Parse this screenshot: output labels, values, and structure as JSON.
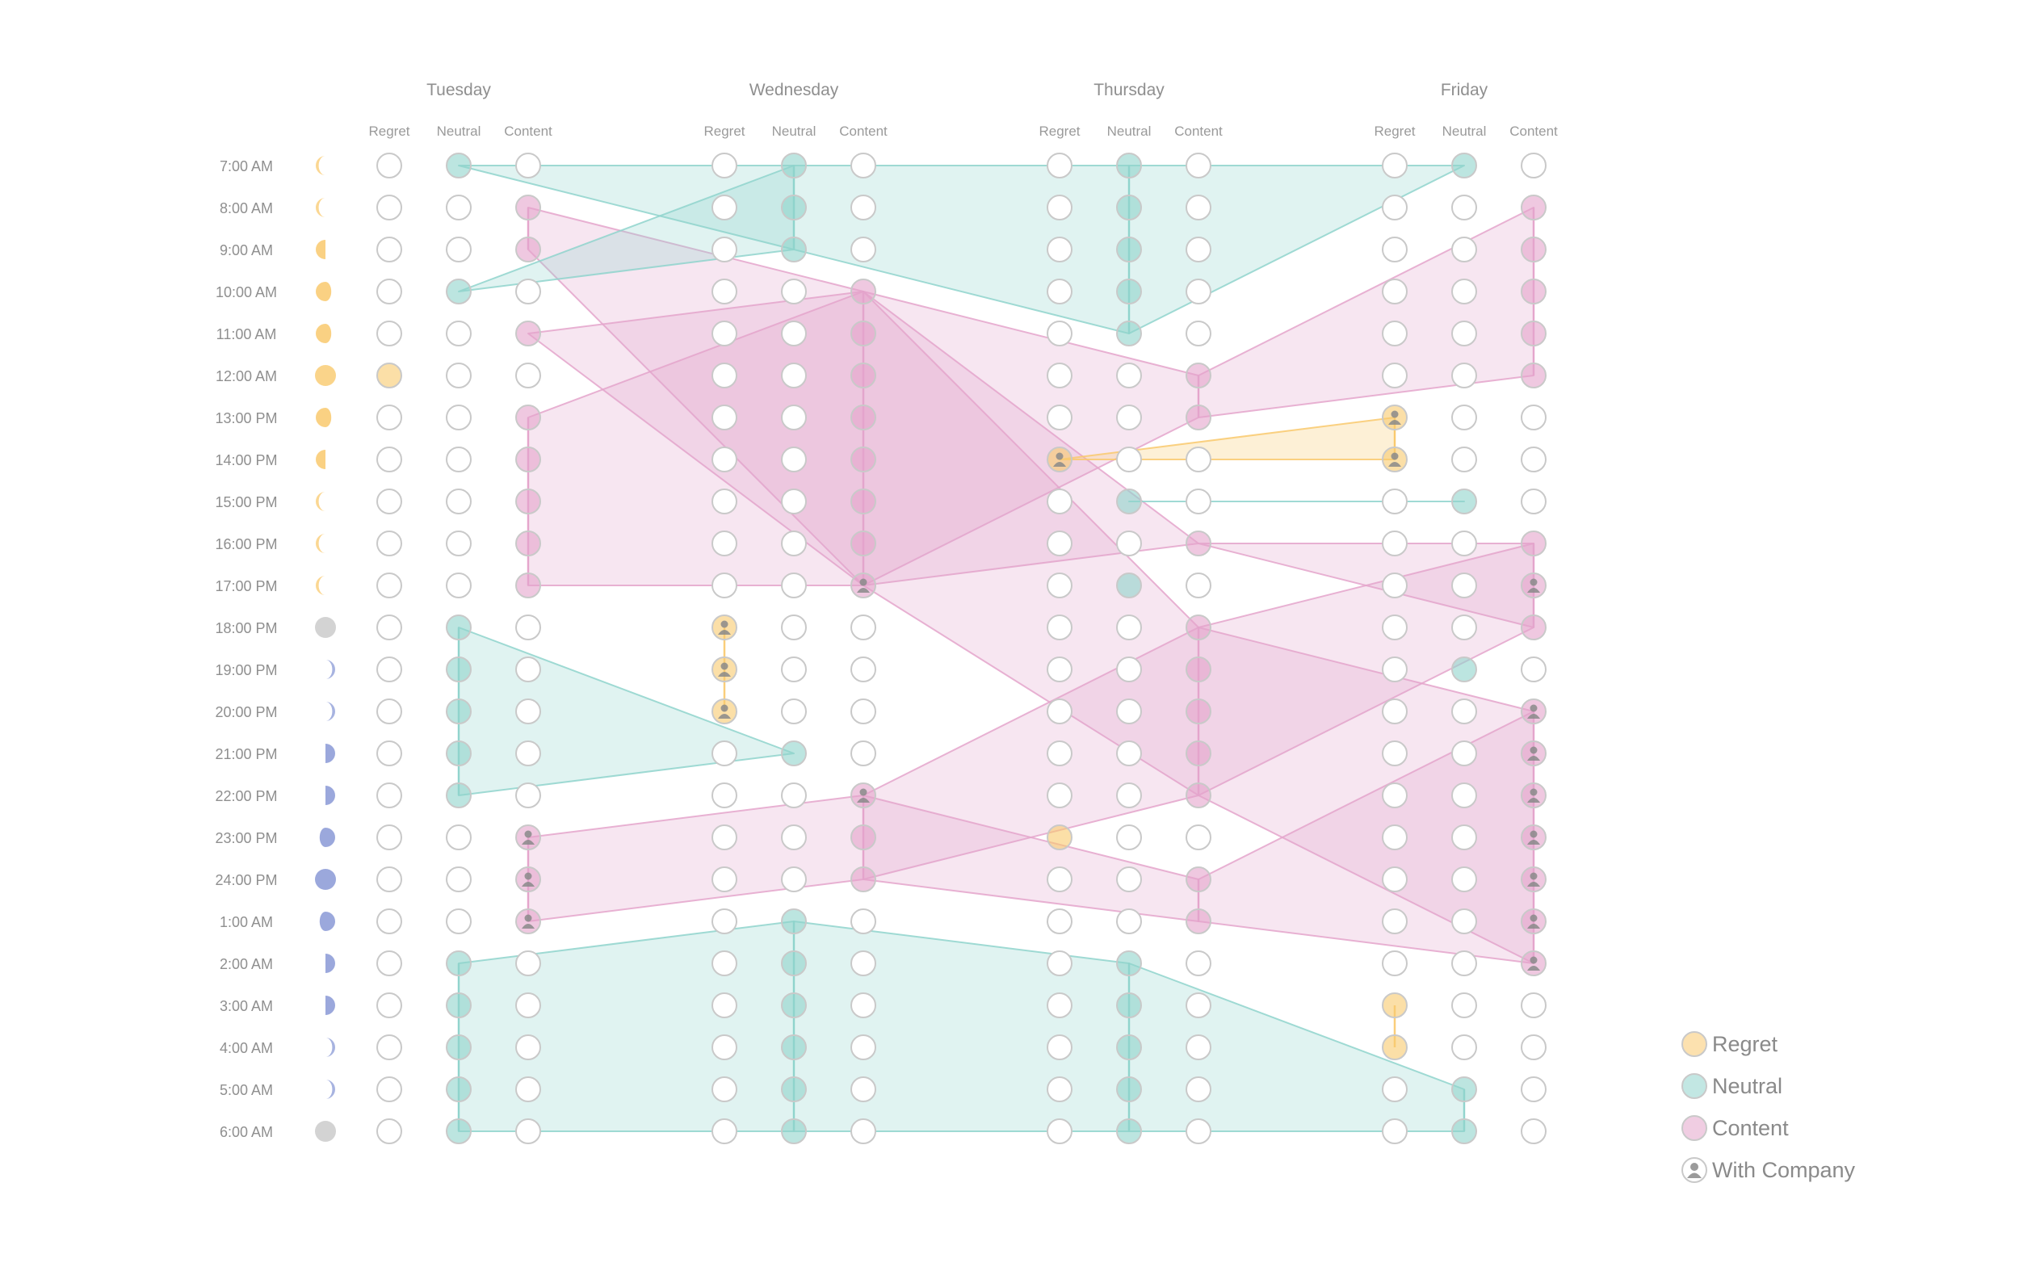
{
  "chart_data": {
    "type": "parallel-sets",
    "days": [
      "Tuesday",
      "Wednesday",
      "Thursday",
      "Friday"
    ],
    "moods": [
      "Regret",
      "Neutral",
      "Content"
    ],
    "times": [
      "7:00 AM",
      "8:00 AM",
      "9:00 AM",
      "10:00 AM",
      "11:00 AM",
      "12:00 AM",
      "13:00 PM",
      "14:00 PM",
      "15:00 PM",
      "16:00 PM",
      "17:00 PM",
      "18:00 PM",
      "19:00 PM",
      "20:00 PM",
      "21:00 PM",
      "22:00 PM",
      "23:00 PM",
      "24:00 PM",
      "1:00 AM",
      "2:00 AM",
      "3:00 AM",
      "4:00 AM",
      "5:00 AM",
      "6:00 AM"
    ],
    "moon_phases": [
      "crescent",
      "crescent",
      "quarter",
      "gibbous",
      "gibbous",
      "full",
      "gibbous",
      "quarter",
      "crescent",
      "crescent",
      "crescent",
      "empty",
      "crescent",
      "crescent",
      "quarter",
      "quarter",
      "gibbous",
      "full",
      "gibbous",
      "quarter",
      "quarter",
      "crescent",
      "crescent",
      "empty"
    ],
    "colors": {
      "Regret": "#f9c96d",
      "Neutral": "#8fd3cc",
      "Content": "#e4a4cb",
      "moon_day": "#f9c96d",
      "moon_night": "#8a99d6",
      "moon_empty": "#d3d3d3",
      "company": "#8a8a8a",
      "circle": "#c9c9c9"
    },
    "mood_grid": {
      "Tuesday": [
        "Neutral",
        "Content",
        "Content",
        "Neutral",
        "Content",
        "Regret",
        "Content",
        "Content",
        "Content",
        "Content",
        "Content",
        "Neutral",
        "Neutral",
        "Neutral",
        "Neutral",
        "Neutral",
        "Content",
        "Content",
        "Content",
        "Neutral",
        "Neutral",
        "Neutral",
        "Neutral",
        "Neutral"
      ],
      "Wednesday": [
        "Neutral",
        "Neutral",
        "Neutral",
        "Content",
        "Content",
        "Content",
        "Content",
        "Content",
        "Content",
        "Content",
        "Content",
        "Regret",
        "Regret",
        "Regret",
        "Neutral",
        "Content",
        "Content",
        "Content",
        "Neutral",
        "Neutral",
        "Neutral",
        "Neutral",
        "Neutral",
        "Neutral"
      ],
      "Thursday": [
        "Neutral",
        "Neutral",
        "Neutral",
        "Neutral",
        "Neutral",
        "Content",
        "Content",
        "Regret",
        "Neutral",
        "Content",
        "Neutral",
        "Content",
        "Content",
        "Content",
        "Content",
        "Content",
        "Regret",
        "Content",
        "Content",
        "Neutral",
        "Neutral",
        "Neutral",
        "Neutral",
        "Neutral"
      ],
      "Friday": [
        "Neutral",
        "Content",
        "Content",
        "Content",
        "Content",
        "Content",
        "Regret",
        "Regret",
        "Neutral",
        "Content",
        "Content",
        "Content",
        "Neutral",
        "Content",
        "Content",
        "Content",
        "Content",
        "Content",
        "Content",
        "Content",
        "Regret",
        "Regret",
        "Neutral",
        "Neutral"
      ]
    },
    "with_company": {
      "Tuesday": [
        16,
        17,
        18
      ],
      "Wednesday": [
        10,
        11,
        12,
        13,
        15
      ],
      "Thursday": [
        7
      ],
      "Friday": [
        6,
        7,
        10,
        13,
        14,
        15,
        16,
        17,
        18,
        19
      ]
    },
    "legend": [
      "Regret",
      "Neutral",
      "Content",
      "With Company"
    ],
    "legend_placement": "bottom-right"
  }
}
